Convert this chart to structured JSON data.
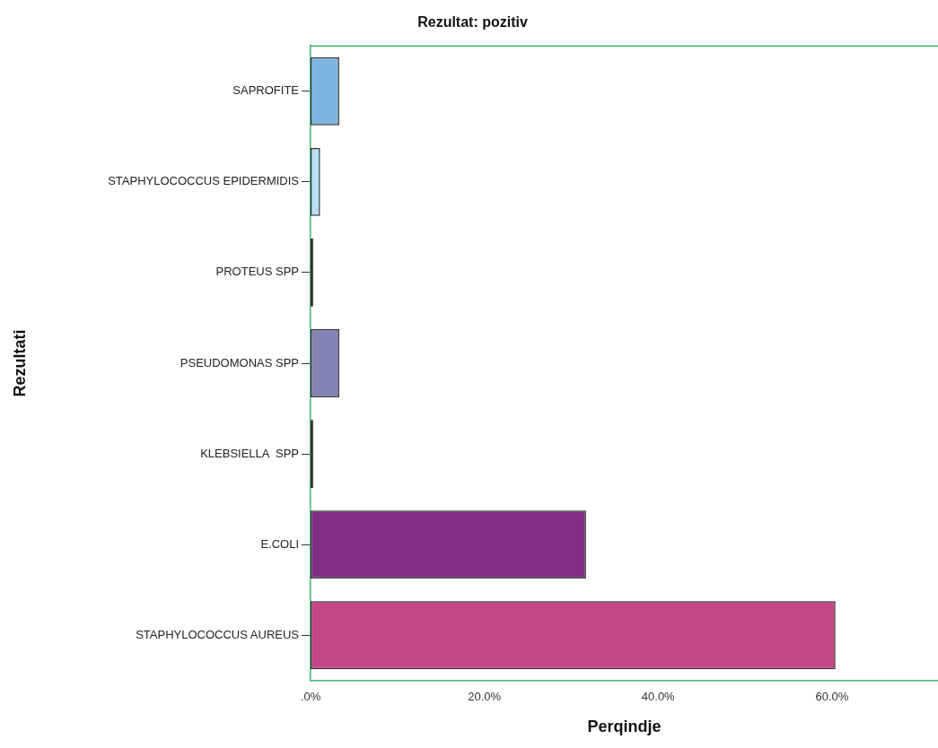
{
  "chart_data": {
    "type": "bar",
    "orientation": "horizontal",
    "title": "Rezultat: pozitiv",
    "xlabel": "Perqindje",
    "ylabel": "Rezultati",
    "categories": [
      "SAPROFITE",
      "STAPHYLOCOCCUS EPIDERMIDIS",
      "PROTEUS SPP",
      "PSEUDOMONAS SPP",
      "KLEBSIELLA  SPP",
      "E.COLI",
      "STAPHYLOCOCCUS AUREUS"
    ],
    "values": [
      3.3,
      1.1,
      0.3,
      3.3,
      0.3,
      31.7,
      60.4
    ],
    "colors": [
      "#7eb5e0",
      "#b7dcf8",
      "#333333",
      "#8282b4",
      "#333333",
      "#842f85",
      "#c64786"
    ],
    "xlim": [
      0,
      72.2
    ],
    "xticks": [
      {
        "value": 0,
        "label": ".0%"
      },
      {
        "value": 20,
        "label": "20.0%"
      },
      {
        "value": 40,
        "label": "40.0%"
      },
      {
        "value": 60,
        "label": "60.0%"
      }
    ],
    "grid": false,
    "legend": false
  }
}
